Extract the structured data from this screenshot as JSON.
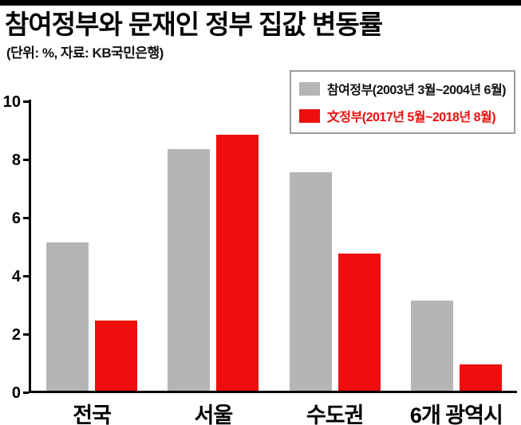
{
  "header": {
    "title": "참여정부와 문재인 정부 집값 변동률",
    "subtitle": "(단위: %, 자료: KB국민은행)"
  },
  "legend": {
    "items": [
      {
        "label": "참여정부(2003년 3월~2004년 6월)",
        "swatch_color": "#b5b5b5",
        "text_color": "#111111"
      },
      {
        "label": "文정부(2017년 5월~2018년 8월)",
        "swatch_color": "#ee0e0e",
        "text_color": "#ee0e0e"
      }
    ]
  },
  "chart_data": {
    "type": "bar",
    "title": "참여정부와 문재인 정부 집값 변동률",
    "unit_note": "(단위: %, 자료: KB국민은행)",
    "categories": [
      "전국",
      "서울",
      "수도권",
      "6개 광역시"
    ],
    "series": [
      {
        "name": "참여정부(2003년 3월~2004년 6월)",
        "color": "#b5b5b5",
        "values": [
          5.1,
          8.3,
          7.5,
          3.1
        ]
      },
      {
        "name": "文정부(2017년 5월~2018년 8월)",
        "color": "#ee0e0e",
        "values": [
          2.4,
          8.8,
          4.7,
          0.9
        ]
      }
    ],
    "xlabel": "",
    "ylabel": "",
    "ylim": [
      0,
      10
    ],
    "yticks": [
      0,
      2,
      4,
      6,
      8,
      10
    ],
    "grid": false,
    "legend_position": "top-right"
  }
}
